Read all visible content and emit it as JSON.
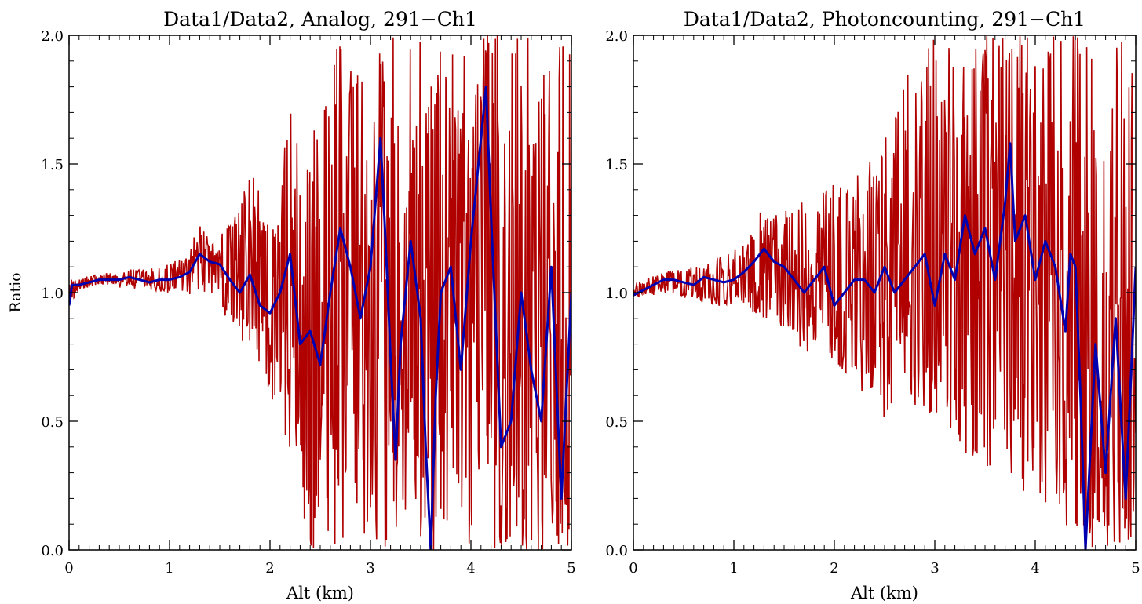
{
  "figure": {
    "ylabel": "Ratio",
    "colors": {
      "raw": "#b00000",
      "smoothed": "#0000b0",
      "axes": "#000000",
      "background": "#ffffff"
    }
  },
  "chart_data": [
    {
      "type": "line",
      "title": "Data1/Data2, Analog, 291−Ch1",
      "xlabel": "Alt (km)",
      "ylabel": "Ratio",
      "xlim": [
        0,
        5
      ],
      "ylim": [
        0,
        2
      ],
      "xticks": [
        0,
        1,
        2,
        3,
        4,
        5
      ],
      "xtick_labels": [
        "0",
        "1",
        "2",
        "3",
        "4",
        "5"
      ],
      "yticks": [
        0,
        0.5,
        1,
        1.5,
        2
      ],
      "ytick_labels": [
        "0.0",
        "0.5",
        "1.0",
        "1.5",
        "2.0"
      ],
      "grid": false,
      "series": [
        {
          "color": "#b00000",
          "style": "raw noisy",
          "x": [
            0,
            0.1,
            0.2,
            0.3,
            0.4,
            0.5,
            0.6,
            0.7,
            0.8,
            0.9,
            1.0,
            1.1,
            1.2,
            1.3,
            1.4,
            1.5,
            1.6,
            1.7,
            1.8,
            1.9,
            2.0,
            2.1,
            2.2,
            2.3,
            2.4,
            2.5,
            2.6,
            2.7,
            2.8,
            2.9,
            3.0,
            3.1,
            3.2,
            3.3,
            3.4,
            3.5,
            3.6,
            3.7,
            3.8,
            3.9,
            4.0,
            4.1,
            4.2,
            4.3,
            4.4,
            4.5,
            4.6,
            4.7,
            4.8,
            4.9,
            5.0
          ],
          "lower": [
            0.95,
            1.01,
            1.02,
            1.03,
            1.03,
            1.02,
            1.02,
            1.01,
            1.01,
            1.0,
            1.0,
            0.99,
            0.98,
            0.97,
            0.95,
            0.93,
            0.88,
            0.82,
            0.78,
            0.7,
            0.6,
            0.52,
            0.38,
            0.2,
            0,
            0,
            0,
            0,
            0,
            0,
            0,
            0,
            0,
            0,
            0,
            0,
            0,
            0,
            0,
            0,
            0,
            0,
            0,
            0,
            0,
            0,
            0,
            0,
            0,
            0,
            0
          ],
          "upper": [
            1.06,
            1.05,
            1.07,
            1.07,
            1.08,
            1.08,
            1.09,
            1.1,
            1.1,
            1.1,
            1.12,
            1.14,
            1.18,
            1.27,
            1.2,
            1.21,
            1.3,
            1.33,
            1.5,
            1.4,
            1.3,
            1.3,
            2.0,
            1.4,
            1.6,
            1.7,
            1.9,
            2.0,
            2.0,
            2.0,
            2.0,
            2.0,
            2.0,
            2.0,
            2.0,
            2.0,
            2.0,
            2.0,
            2.0,
            2.0,
            2.0,
            2.0,
            2.0,
            2.0,
            2.0,
            2.0,
            2.0,
            2.0,
            2.0,
            2.0,
            2.0
          ]
        },
        {
          "color": "#0000b0",
          "style": "smoothed",
          "x": [
            0,
            0.03,
            0.1,
            0.2,
            0.3,
            0.4,
            0.5,
            0.6,
            0.7,
            0.8,
            0.9,
            1.0,
            1.1,
            1.2,
            1.3,
            1.4,
            1.5,
            1.6,
            1.7,
            1.8,
            1.9,
            2.0,
            2.1,
            2.2,
            2.3,
            2.4,
            2.5,
            2.6,
            2.7,
            2.8,
            2.9,
            3.0,
            3.1,
            3.15,
            3.2,
            3.25,
            3.3,
            3.4,
            3.5,
            3.55,
            3.6,
            3.65,
            3.7,
            3.8,
            3.9,
            4.0,
            4.1,
            4.15,
            4.2,
            4.3,
            4.4,
            4.5,
            4.6,
            4.7,
            4.8,
            4.9,
            5.0
          ],
          "y": [
            0.95,
            1.03,
            1.03,
            1.04,
            1.05,
            1.05,
            1.05,
            1.06,
            1.05,
            1.04,
            1.05,
            1.05,
            1.06,
            1.08,
            1.15,
            1.12,
            1.11,
            1.05,
            1.0,
            1.07,
            0.95,
            0.92,
            1.0,
            1.15,
            0.8,
            0.85,
            0.72,
            1.0,
            1.25,
            1.1,
            0.9,
            1.1,
            1.6,
            1.2,
            0.75,
            0.35,
            0.8,
            1.2,
            0.9,
            0.4,
            0.0,
            0.6,
            1.0,
            1.1,
            0.7,
            1.2,
            1.6,
            1.8,
            1.3,
            0.4,
            0.5,
            1.0,
            0.7,
            0.5,
            1.1,
            0.2,
            1.0
          ]
        }
      ]
    },
    {
      "type": "line",
      "title": "Data1/Data2, Photoncounting, 291−Ch1",
      "xlabel": "Alt (km)",
      "ylabel": "",
      "xlim": [
        0,
        5
      ],
      "ylim": [
        0,
        2
      ],
      "xticks": [
        0,
        1,
        2,
        3,
        4,
        5
      ],
      "xtick_labels": [
        "0",
        "1",
        "2",
        "3",
        "4",
        "5"
      ],
      "yticks": [
        0,
        0.5,
        1,
        1.5,
        2
      ],
      "ytick_labels": [
        "0.0",
        "0.5",
        "1.0",
        "1.5",
        "2.0"
      ],
      "grid": false,
      "series": [
        {
          "color": "#b00000",
          "style": "raw noisy",
          "x": [
            0,
            0.1,
            0.2,
            0.3,
            0.4,
            0.5,
            0.6,
            0.7,
            0.8,
            0.9,
            1.0,
            1.1,
            1.2,
            1.3,
            1.4,
            1.5,
            1.6,
            1.7,
            1.8,
            1.9,
            2.0,
            2.1,
            2.2,
            2.3,
            2.4,
            2.5,
            2.6,
            2.7,
            2.8,
            2.9,
            3.0,
            3.1,
            3.2,
            3.3,
            3.4,
            3.5,
            3.6,
            3.7,
            3.8,
            3.9,
            4.0,
            4.1,
            4.2,
            4.3,
            4.4,
            4.5,
            4.6,
            4.7,
            4.8,
            4.9,
            5.0
          ],
          "lower": [
            0.98,
            0.99,
            0.99,
            1.0,
            0.99,
            0.98,
            0.97,
            0.96,
            0.95,
            0.94,
            0.93,
            0.92,
            0.9,
            0.88,
            0.87,
            0.86,
            0.85,
            0.72,
            0.8,
            0.7,
            0.65,
            0.7,
            0.6,
            0.6,
            0.62,
            0.5,
            0.6,
            0.6,
            0.55,
            0.52,
            0.5,
            0.45,
            0.4,
            0.3,
            0.35,
            0.3,
            0.3,
            0.25,
            0.3,
            0.2,
            0.2,
            0.15,
            0.12,
            0.1,
            0.05,
            0,
            0,
            0,
            0,
            0,
            0
          ],
          "upper": [
            1.03,
            1.05,
            1.07,
            1.08,
            1.09,
            1.1,
            1.1,
            1.12,
            1.13,
            1.15,
            1.17,
            1.2,
            1.25,
            1.35,
            1.3,
            1.32,
            1.35,
            1.35,
            1.35,
            1.4,
            1.43,
            1.45,
            1.45,
            1.5,
            1.55,
            1.6,
            1.7,
            1.85,
            2.0,
            2.0,
            2.0,
            2.0,
            2.0,
            2.0,
            2.0,
            2.0,
            2.0,
            2.0,
            2.0,
            2.0,
            2.0,
            2.0,
            2.0,
            2.0,
            2.0,
            2.0,
            2.0,
            2.0,
            2.0,
            2.0,
            2.0
          ]
        },
        {
          "color": "#0000b0",
          "style": "smoothed",
          "x": [
            0,
            0.1,
            0.2,
            0.3,
            0.4,
            0.5,
            0.6,
            0.7,
            0.8,
            0.9,
            1.0,
            1.1,
            1.2,
            1.3,
            1.4,
            1.5,
            1.6,
            1.7,
            1.8,
            1.9,
            2.0,
            2.1,
            2.2,
            2.3,
            2.4,
            2.5,
            2.6,
            2.7,
            2.8,
            2.9,
            3.0,
            3.1,
            3.2,
            3.3,
            3.4,
            3.5,
            3.6,
            3.7,
            3.75,
            3.8,
            3.9,
            4.0,
            4.1,
            4.2,
            4.3,
            4.35,
            4.4,
            4.45,
            4.5,
            4.55,
            4.6,
            4.7,
            4.8,
            4.9,
            5.0
          ],
          "y": [
            0.99,
            1.01,
            1.03,
            1.05,
            1.05,
            1.04,
            1.03,
            1.06,
            1.05,
            1.04,
            1.05,
            1.08,
            1.12,
            1.17,
            1.12,
            1.1,
            1.05,
            1.0,
            1.05,
            1.1,
            0.95,
            1.0,
            1.05,
            1.05,
            1.0,
            1.1,
            1.0,
            1.05,
            1.1,
            1.15,
            0.95,
            1.15,
            1.05,
            1.3,
            1.15,
            1.25,
            1.05,
            1.35,
            1.58,
            1.2,
            1.3,
            1.05,
            1.2,
            1.1,
            0.85,
            1.15,
            1.1,
            0.6,
            0.0,
            0.4,
            0.8,
            0.3,
            0.9,
            0.2,
            1.1
          ]
        }
      ]
    }
  ]
}
